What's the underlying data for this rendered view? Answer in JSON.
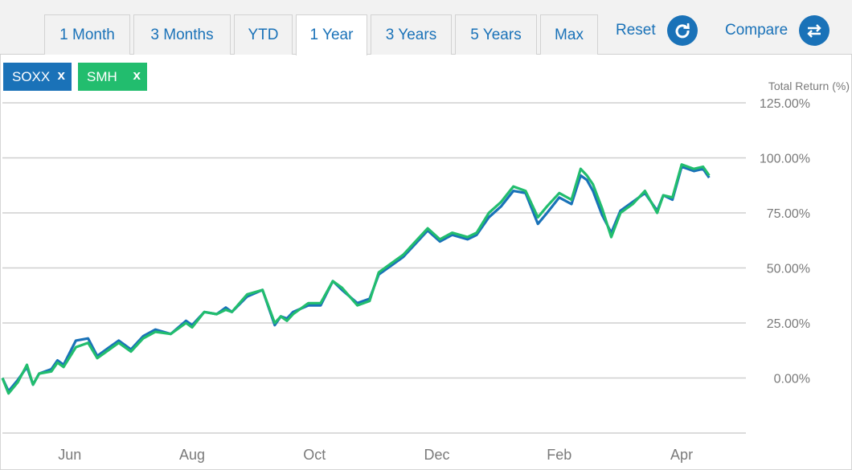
{
  "tabs": [
    {
      "label": "1 Month",
      "active": false
    },
    {
      "label": "3 Months",
      "active": false
    },
    {
      "label": "YTD",
      "active": false
    },
    {
      "label": "1 Year",
      "active": true
    },
    {
      "label": "3 Years",
      "active": false
    },
    {
      "label": "5 Years",
      "active": false
    },
    {
      "label": "Max",
      "active": false
    }
  ],
  "actions": {
    "reset_label": "Reset",
    "compare_label": "Compare"
  },
  "chips": [
    {
      "label": "SOXX",
      "close": "x",
      "color": "#1a72b8"
    },
    {
      "label": "SMH",
      "close": "x",
      "color": "#22bd6e"
    }
  ],
  "colors": {
    "accent": "#1a72b8",
    "soxx": "#1a72b8",
    "smh": "#22bd6e",
    "grid": "#cfcfcf",
    "axis_text": "#7a7a7a"
  },
  "chart_data": {
    "type": "line",
    "ylabel": "Total Return (%)",
    "ylim": [
      -50,
      125
    ],
    "yticks": [
      {
        "value": 125,
        "label": "125.00%"
      },
      {
        "value": 100,
        "label": "100.00%"
      },
      {
        "value": 75,
        "label": "75.00%"
      },
      {
        "value": 50,
        "label": "50.00%"
      },
      {
        "value": 25,
        "label": "25.00%"
      },
      {
        "value": 0,
        "label": "0.00%"
      }
    ],
    "xlim": [
      0,
      12.15
    ],
    "xticks": [
      {
        "value": 1.1,
        "label": "Jun"
      },
      {
        "value": 3.1,
        "label": "Aug"
      },
      {
        "value": 5.1,
        "label": "Oct"
      },
      {
        "value": 7.1,
        "label": "Dec"
      },
      {
        "value": 9.1,
        "label": "Feb"
      },
      {
        "value": 11.1,
        "label": "Apr"
      }
    ],
    "grid": true,
    "legend": "top-left chips",
    "series": [
      {
        "name": "SOXX",
        "color": "#1a72b8",
        "x": [
          0,
          0.1,
          0.25,
          0.4,
          0.5,
          0.6,
          0.8,
          0.9,
          1.0,
          1.2,
          1.4,
          1.55,
          1.75,
          1.9,
          2.1,
          2.3,
          2.5,
          2.75,
          3.0,
          3.1,
          3.3,
          3.5,
          3.65,
          3.75,
          4.0,
          4.25,
          4.45,
          4.55,
          4.65,
          4.75,
          5.0,
          5.2,
          5.4,
          5.55,
          5.8,
          6.0,
          6.15,
          6.35,
          6.55,
          6.75,
          6.95,
          7.15,
          7.35,
          7.6,
          7.75,
          7.95,
          8.15,
          8.35,
          8.55,
          8.75,
          8.9,
          9.1,
          9.3,
          9.45,
          9.55,
          9.65,
          9.8,
          9.95,
          10.1,
          10.3,
          10.5,
          10.7,
          10.8,
          10.95,
          11.1,
          11.3,
          11.45,
          11.55
        ],
        "y": [
          0,
          -6,
          -1,
          5,
          -3,
          2,
          4,
          8,
          6,
          17,
          18,
          10,
          14,
          17,
          13,
          19,
          22,
          20,
          26,
          24,
          30,
          29,
          32,
          30,
          37,
          40,
          24,
          28,
          27,
          30,
          33,
          33,
          44,
          40,
          34,
          36,
          47,
          51,
          55,
          61,
          67,
          62,
          65,
          63,
          65,
          73,
          78,
          85,
          84,
          70,
          75,
          82,
          79,
          92,
          90,
          85,
          74,
          66,
          76,
          80,
          84,
          76,
          83,
          81,
          96,
          94,
          95,
          91
        ]
      },
      {
        "name": "SMH",
        "color": "#22bd6e",
        "x": [
          0,
          0.1,
          0.25,
          0.4,
          0.5,
          0.6,
          0.8,
          0.9,
          1.0,
          1.2,
          1.4,
          1.55,
          1.75,
          1.9,
          2.1,
          2.3,
          2.5,
          2.75,
          3.0,
          3.1,
          3.3,
          3.5,
          3.65,
          3.75,
          4.0,
          4.25,
          4.45,
          4.55,
          4.65,
          4.75,
          5.0,
          5.2,
          5.4,
          5.55,
          5.8,
          6.0,
          6.15,
          6.35,
          6.55,
          6.75,
          6.95,
          7.15,
          7.35,
          7.6,
          7.75,
          7.95,
          8.15,
          8.35,
          8.55,
          8.75,
          8.9,
          9.1,
          9.3,
          9.45,
          9.55,
          9.65,
          9.8,
          9.95,
          10.1,
          10.3,
          10.5,
          10.7,
          10.8,
          10.95,
          11.1,
          11.3,
          11.45,
          11.55
        ],
        "y": [
          0,
          -7,
          -2,
          6,
          -3,
          2,
          3,
          7,
          5,
          14,
          16,
          9,
          13,
          16,
          12,
          18,
          21,
          20,
          25,
          23,
          30,
          29,
          31,
          30,
          38,
          40,
          25,
          28,
          26,
          29,
          34,
          34,
          44,
          41,
          33,
          35,
          48,
          52,
          56,
          62,
          68,
          63,
          66,
          64,
          66,
          75,
          80,
          87,
          85,
          73,
          78,
          84,
          81,
          95,
          92,
          88,
          77,
          64,
          75,
          79,
          85,
          75,
          83,
          82,
          97,
          95,
          96,
          92
        ]
      }
    ]
  }
}
